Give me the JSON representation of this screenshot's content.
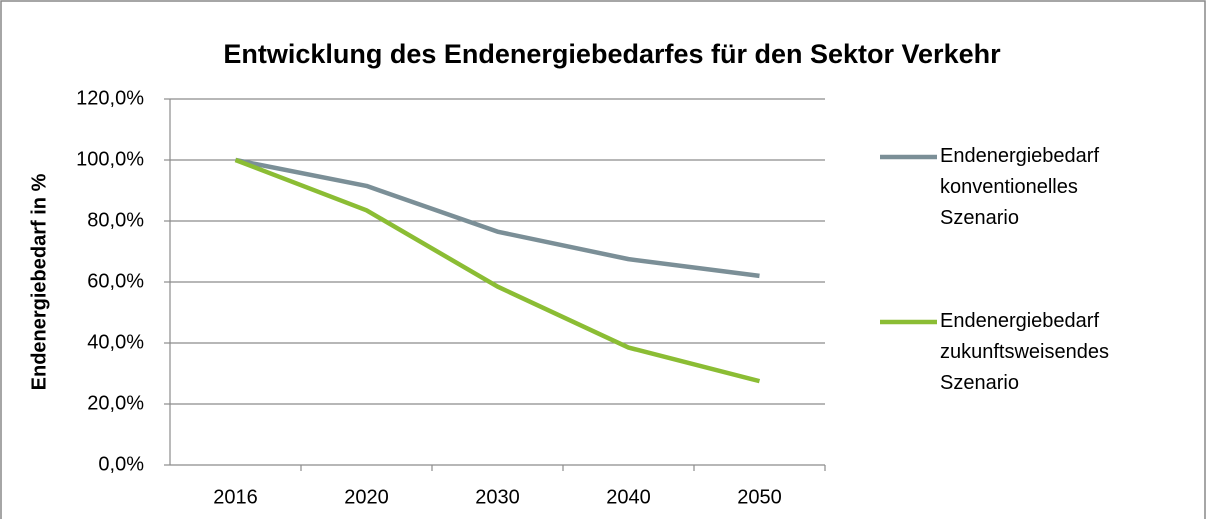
{
  "chart_data": {
    "type": "line",
    "title": "Entwicklung des Endenergiebedarfes für den Sektor Verkehr",
    "y_label": "Endenergiebedarf in %",
    "categories": [
      "2016",
      "2020",
      "2030",
      "2040",
      "2050"
    ],
    "series": [
      {
        "name": "Endenergiebedarf konventionelles Szenario",
        "color": "#7b8f97",
        "values": [
          100,
          91.5,
          76.5,
          67.5,
          62
        ]
      },
      {
        "name": "Endenergiebedarf zukunftsweisendes Szenario",
        "color": "#8bbd34",
        "values": [
          100,
          83.5,
          58.5,
          38.5,
          27.5
        ]
      }
    ],
    "ylim": [
      0,
      120
    ],
    "yticks": [
      {
        "value": 0,
        "label": "0,0%"
      },
      {
        "value": 20,
        "label": "20,0%"
      },
      {
        "value": 40,
        "label": "40,0%"
      },
      {
        "value": 60,
        "label": "60,0%"
      },
      {
        "value": 80,
        "label": "80,0%"
      },
      {
        "value": 100,
        "label": "100,0%"
      },
      {
        "value": 120,
        "label": "120,0%"
      }
    ],
    "grid": true,
    "legend": "right"
  }
}
